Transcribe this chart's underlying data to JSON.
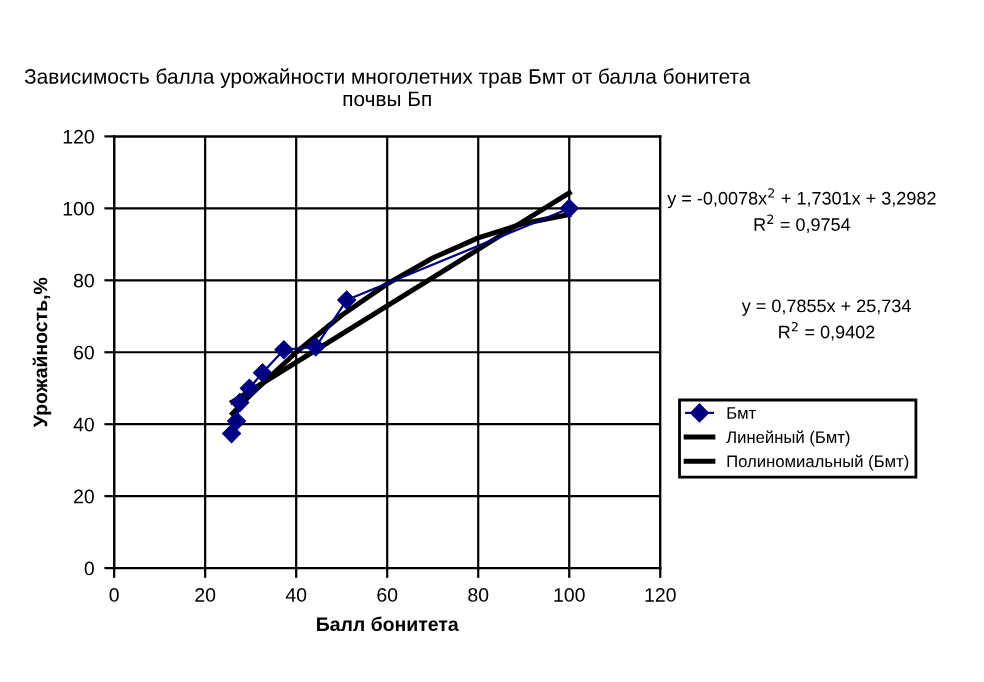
{
  "chart_data": {
    "type": "line",
    "title": "Зависимость балла урожайности многолетних трав Бмт от балла бонитета почвы Бп",
    "xlabel": "Балл бонитета",
    "ylabel": "Урожайность,%",
    "series": [
      {
        "name": "Бмт",
        "color": "#000080",
        "marker": "diamond",
        "x": [
          25.8,
          26.9,
          27.6,
          29.7,
          32.6,
          37.3,
          44.3,
          51.1,
          100
        ],
        "values": [
          37.4,
          40.9,
          46,
          50,
          54.3,
          60.7,
          61.5,
          74.5,
          100
        ]
      },
      {
        "name": "Линейный (Бмт)",
        "color": "#000000",
        "marker": "none",
        "x": [
          26,
          100
        ],
        "values": [
          46.2,
          104.3
        ]
      },
      {
        "name": "Полиномиальный (Бмт)",
        "color": "#000000",
        "marker": "none",
        "x": [
          26,
          30,
          40,
          50,
          60,
          70,
          80,
          90,
          100
        ],
        "values": [
          43,
          48.2,
          60,
          70.3,
          79,
          86.2,
          91.8,
          95.8,
          98.3
        ]
      }
    ],
    "annotations": [
      "y = -0,0078x$^{2}$ + 1,7301x + 3,2982\nR$^{2}$ = 0,9754",
      "y = 0,7855x + 25,734\nR$^{2}$ = 0,9402"
    ],
    "xlim": [
      0,
      120
    ],
    "xticks": [
      0,
      20,
      40,
      60,
      80,
      100,
      120
    ],
    "ylim": [
      0,
      120
    ],
    "yticks": [
      0,
      20,
      40,
      60,
      80,
      100,
      120
    ],
    "grid": "xy",
    "legend": "right"
  }
}
